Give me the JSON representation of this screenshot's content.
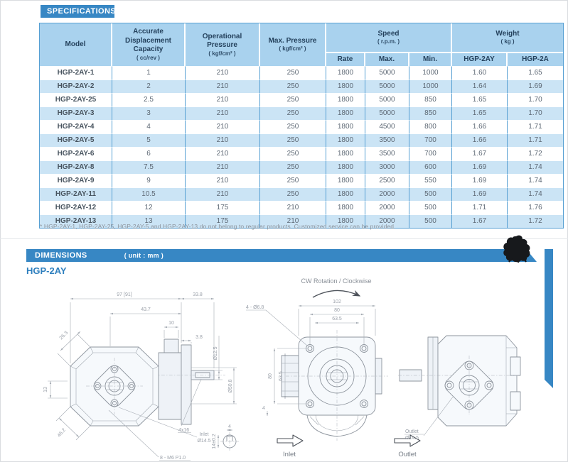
{
  "colors": {
    "accent_blue": "#3787c4",
    "table_header_bg": "#a9d2ee",
    "row_alt_bg": "#cbe4f5",
    "table_border": "#57a0d3"
  },
  "specifications": {
    "banner_title": "SPECIFICATIONS",
    "table": {
      "headers": {
        "model": "Model",
        "capacity": "Accurate Displacement Capacity",
        "capacity_unit": "( cc/rev )",
        "op_pressure": "Operational Pressure",
        "op_pressure_unit": "( kgf/cm² )",
        "max_pressure": "Max. Pressure",
        "max_pressure_unit": "( kgf/cm² )",
        "speed": "Speed",
        "speed_unit": "( r.p.m. )",
        "weight": "Weight",
        "weight_unit": "( kg )",
        "rate": "Rate",
        "max": "Max.",
        "min": "Min.",
        "weight_col_1": "HGP-2AY",
        "weight_col_2": "HGP-2A"
      },
      "rows": [
        {
          "model": "HGP-2AY-1",
          "capacity": "1",
          "op_pressure": "210",
          "max_pressure": "250",
          "rate": "1800",
          "max": "5000",
          "min": "1000",
          "weight_2ay": "1.60",
          "weight_2a": "1.65"
        },
        {
          "model": "HGP-2AY-2",
          "capacity": "2",
          "op_pressure": "210",
          "max_pressure": "250",
          "rate": "1800",
          "max": "5000",
          "min": "1000",
          "weight_2ay": "1.64",
          "weight_2a": "1.69"
        },
        {
          "model": "HGP-2AY-25",
          "capacity": "2.5",
          "op_pressure": "210",
          "max_pressure": "250",
          "rate": "1800",
          "max": "5000",
          "min": "850",
          "weight_2ay": "1.65",
          "weight_2a": "1.70"
        },
        {
          "model": "HGP-2AY-3",
          "capacity": "3",
          "op_pressure": "210",
          "max_pressure": "250",
          "rate": "1800",
          "max": "5000",
          "min": "850",
          "weight_2ay": "1.65",
          "weight_2a": "1.70"
        },
        {
          "model": "HGP-2AY-4",
          "capacity": "4",
          "op_pressure": "210",
          "max_pressure": "250",
          "rate": "1800",
          "max": "4500",
          "min": "800",
          "weight_2ay": "1.66",
          "weight_2a": "1.71"
        },
        {
          "model": "HGP-2AY-5",
          "capacity": "5",
          "op_pressure": "210",
          "max_pressure": "250",
          "rate": "1800",
          "max": "3500",
          "min": "700",
          "weight_2ay": "1.66",
          "weight_2a": "1.71"
        },
        {
          "model": "HGP-2AY-6",
          "capacity": "6",
          "op_pressure": "210",
          "max_pressure": "250",
          "rate": "1800",
          "max": "3500",
          "min": "700",
          "weight_2ay": "1.67",
          "weight_2a": "1.72"
        },
        {
          "model": "HGP-2AY-8",
          "capacity": "7.5",
          "op_pressure": "210",
          "max_pressure": "250",
          "rate": "1800",
          "max": "3000",
          "min": "600",
          "weight_2ay": "1.69",
          "weight_2a": "1.74"
        },
        {
          "model": "HGP-2AY-9",
          "capacity": "9",
          "op_pressure": "210",
          "max_pressure": "250",
          "rate": "1800",
          "max": "2500",
          "min": "550",
          "weight_2ay": "1.69",
          "weight_2a": "1.74"
        },
        {
          "model": "HGP-2AY-11",
          "capacity": "10.5",
          "op_pressure": "210",
          "max_pressure": "250",
          "rate": "1800",
          "max": "2000",
          "min": "500",
          "weight_2ay": "1.69",
          "weight_2a": "1.74"
        },
        {
          "model": "HGP-2AY-12",
          "capacity": "12",
          "op_pressure": "175",
          "max_pressure": "210",
          "rate": "1800",
          "max": "2000",
          "min": "500",
          "weight_2ay": "1.71",
          "weight_2a": "1.76"
        },
        {
          "model": "HGP-2AY-13",
          "capacity": "13",
          "op_pressure": "175",
          "max_pressure": "210",
          "rate": "1800",
          "max": "2000",
          "min": "500",
          "weight_2ay": "1.67",
          "weight_2a": "1.72"
        }
      ]
    },
    "footnote": "* HGP-2AY-1, HGP-2AY-25, HGP-2AY-5 and HGP-2AY-13 do not belong to regular products. Customized service can be provided."
  },
  "dimensions": {
    "banner_title": "DIMENSIONS",
    "banner_unit": "( unit : mm )",
    "model_label": "HGP-2AY",
    "left_view": {
      "dim_overall": "97 [91]",
      "dim_shaft_ext": "33.8",
      "dim_43_7": "43.7",
      "dim_10": "10",
      "dim_3_8": "3.8",
      "dim_shaft_dia": "Ø12.5",
      "dim_pilot_dia": "Ø50.8",
      "dim_26_3": "26.3",
      "dim_13": "13",
      "dim_46_2": "46.2",
      "dim_key": "4x16",
      "inlet_label": "Inlet",
      "inlet_dia": "Ø14.5",
      "thread_label": "8 - M6 P1.0",
      "dim_key_w": "4",
      "dim_key_h": "14±0.2"
    },
    "front_view": {
      "rotation_note": "CW Rotation / Clockwise",
      "dim_102": "102",
      "dim_80_h": "80",
      "dim_63_5_h": "63.5",
      "dim_80_v": "80",
      "dim_63_5_v": "63.5",
      "hole_label": "4 - Ø6.8",
      "dim_4": "4",
      "inlet_label": "Inlet",
      "outlet_label": "Outlet"
    },
    "rear_view": {
      "outlet_label": "Outlet",
      "outlet_dia": "Ø14.5"
    }
  }
}
